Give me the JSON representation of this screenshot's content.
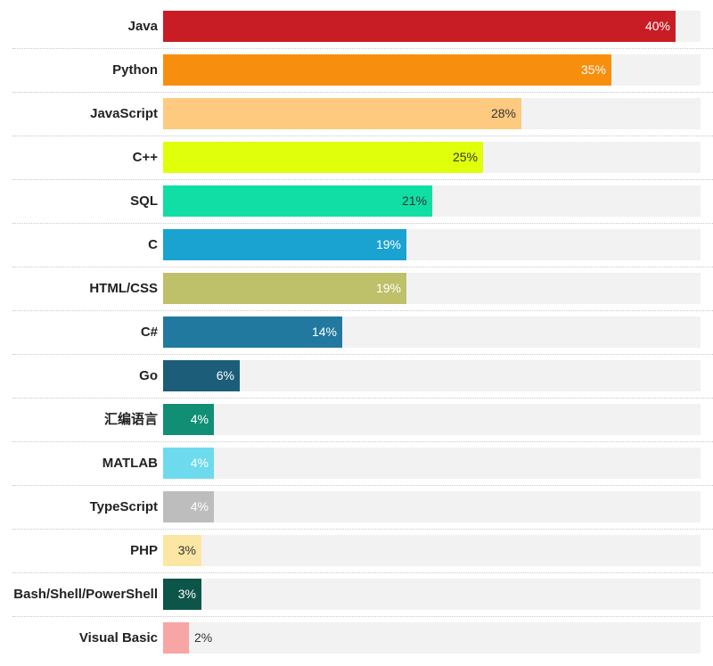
{
  "chart_data": {
    "type": "bar",
    "orientation": "horizontal",
    "categories": [
      "Java",
      "Python",
      "JavaScript",
      "C++",
      "SQL",
      "C",
      "HTML/CSS",
      "C#",
      "Go",
      "汇编语言",
      "MATLAB",
      "TypeScript",
      "PHP",
      "Bash/Shell/PowerShell",
      "Visual Basic"
    ],
    "values": [
      40,
      35,
      28,
      25,
      21,
      19,
      19,
      14,
      6,
      4,
      4,
      4,
      3,
      3,
      2
    ],
    "value_labels": [
      "40%",
      "35%",
      "28%",
      "25%",
      "21%",
      "19%",
      "19%",
      "14%",
      "6%",
      "4%",
      "4%",
      "4%",
      "3%",
      "3%",
      "2%"
    ],
    "colors": [
      "#c81d24",
      "#f88e0d",
      "#fdca80",
      "#e0ff0a",
      "#10dea4",
      "#1aa2d1",
      "#bfc06a",
      "#22799f",
      "#1c5d79",
      "#118f75",
      "#6ddaed",
      "#bdbdbd",
      "#fbe6a3",
      "#0d5549",
      "#f7a5a5"
    ],
    "value_label_colors": [
      "#ffffff",
      "#ffffff",
      "#333333",
      "#333333",
      "#333333",
      "#ffffff",
      "#ffffff",
      "#ffffff",
      "#ffffff",
      "#ffffff",
      "#ffffff",
      "#ffffff",
      "#333333",
      "#ffffff",
      "#333333"
    ],
    "track_color": "#f2f2f2",
    "xlim": [
      0,
      42
    ],
    "grid": false,
    "legend": false
  }
}
